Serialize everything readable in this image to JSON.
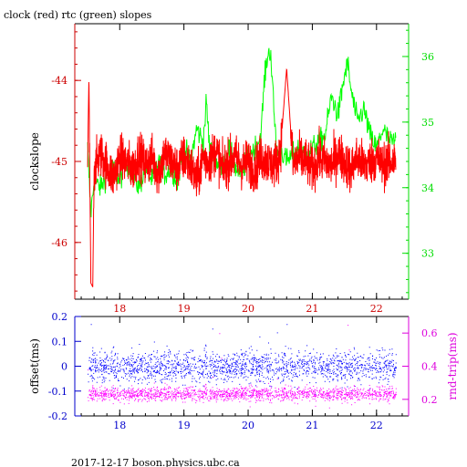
{
  "chart_data": [
    {
      "type": "line",
      "title": "clock (red) rtc (green) slopes",
      "ylabel": "clockslope",
      "xlim": [
        17.3,
        22.5
      ],
      "x_ticks": [
        18,
        19,
        20,
        21,
        22
      ],
      "left_axis": {
        "ylim": [
          -46.7,
          -43.3
        ],
        "ticks": [
          -46,
          -45,
          -44
        ],
        "color": "#cc0000"
      },
      "right_axis": {
        "ylim": [
          32.3,
          36.5
        ],
        "ticks": [
          33,
          34,
          35,
          36
        ],
        "color": "#00dd00"
      },
      "grid": false,
      "series": [
        {
          "name": "clock",
          "color": "#ff0000",
          "axis": "left",
          "x": [
            17.5,
            17.52,
            17.55,
            17.58,
            17.6,
            17.7,
            17.8,
            17.9,
            18.0,
            18.1,
            18.2,
            18.3,
            18.4,
            18.5,
            18.6,
            18.7,
            18.8,
            18.9,
            19.0,
            19.1,
            19.2,
            19.3,
            19.4,
            19.5,
            19.6,
            19.7,
            19.8,
            19.9,
            20.0,
            20.1,
            20.2,
            20.3,
            20.4,
            20.5,
            20.6,
            20.7,
            20.8,
            20.9,
            21.0,
            21.1,
            21.2,
            21.3,
            21.4,
            21.5,
            21.6,
            21.7,
            21.8,
            21.9,
            22.0,
            22.1,
            22.2,
            22.3
          ],
          "y": [
            -45.0,
            -43.95,
            -46.5,
            -46.55,
            -45.1,
            -44.9,
            -45.05,
            -45.2,
            -44.95,
            -45.0,
            -45.1,
            -44.9,
            -45.05,
            -44.95,
            -45.15,
            -44.9,
            -45.0,
            -45.1,
            -44.95,
            -45.05,
            -45.25,
            -44.95,
            -45.0,
            -44.85,
            -45.1,
            -45.0,
            -44.95,
            -45.05,
            -45.0,
            -45.1,
            -44.95,
            -45.0,
            -45.05,
            -44.9,
            -43.85,
            -45.05,
            -44.95,
            -45.0,
            -45.1,
            -44.95,
            -45.0,
            -45.05,
            -44.9,
            -45.0,
            -45.1,
            -44.95,
            -45.05,
            -45.0,
            -44.95,
            -45.05,
            -45.0,
            -45.0
          ]
        },
        {
          "name": "rtc",
          "color": "#00ff00",
          "axis": "right",
          "x": [
            17.5,
            17.55,
            17.6,
            17.7,
            17.8,
            17.9,
            18.0,
            18.1,
            18.2,
            18.3,
            18.4,
            18.5,
            18.6,
            18.7,
            18.8,
            18.9,
            19.0,
            19.1,
            19.2,
            19.3,
            19.35,
            19.4,
            19.5,
            19.6,
            19.7,
            19.8,
            19.9,
            20.0,
            20.1,
            20.2,
            20.25,
            20.3,
            20.35,
            20.4,
            20.45,
            20.5,
            20.6,
            20.7,
            20.8,
            20.9,
            21.0,
            21.1,
            21.2,
            21.3,
            21.4,
            21.5,
            21.55,
            21.6,
            21.7,
            21.8,
            21.9,
            22.0,
            22.1,
            22.2,
            22.3
          ],
          "y": [
            34.6,
            33.6,
            34.1,
            34.0,
            34.2,
            34.3,
            34.1,
            34.4,
            34.2,
            34.0,
            34.3,
            34.1,
            34.4,
            34.2,
            34.3,
            34.1,
            34.6,
            34.4,
            34.9,
            34.7,
            35.3,
            34.6,
            34.4,
            34.3,
            34.6,
            34.3,
            34.2,
            34.5,
            34.6,
            34.8,
            35.6,
            36.0,
            36.1,
            35.2,
            34.5,
            34.6,
            34.4,
            34.5,
            34.6,
            34.5,
            34.6,
            34.7,
            34.8,
            35.4,
            35.1,
            35.7,
            35.9,
            35.5,
            35.0,
            35.2,
            34.8,
            34.6,
            34.9,
            34.7,
            34.7
          ]
        }
      ]
    },
    {
      "type": "scatter",
      "xlim": [
        17.3,
        22.5
      ],
      "x_ticks": [
        18,
        19,
        20,
        21,
        22
      ],
      "left_axis": {
        "label": "offset(ms)",
        "ylim": [
          -0.2,
          0.2
        ],
        "ticks": [
          -0.2,
          -0.1,
          0,
          0.1,
          0.2
        ],
        "color": "#0000cc"
      },
      "right_axis": {
        "label": "rnd-trip(ms)",
        "ylim": [
          0.1,
          0.7
        ],
        "ticks": [
          0.2,
          0.4,
          0.6
        ],
        "color": "#dd00dd"
      },
      "series": [
        {
          "name": "offset",
          "color": "#0000ff",
          "axis": "left",
          "x_range": [
            17.5,
            22.3
          ],
          "center": 0.0,
          "spread": 0.03,
          "outliers": [
            [
              17.55,
              0.17
            ],
            [
              17.9,
              0.08
            ],
            [
              18.3,
              0.09
            ],
            [
              19.45,
              0.05
            ],
            [
              20.6,
              0.17
            ],
            [
              21.55,
              0.05
            ]
          ]
        },
        {
          "name": "rnd-trip",
          "color": "#ff00ff",
          "axis": "right",
          "x_range": [
            17.5,
            22.3
          ],
          "center": 0.235,
          "spread": 0.02,
          "outliers": [
            [
              17.5,
              0.38
            ],
            [
              18.7,
              0.3
            ],
            [
              19.55,
              0.6
            ],
            [
              19.58,
              0.45
            ],
            [
              21.55,
              0.65
            ],
            [
              21.57,
              0.5
            ]
          ]
        }
      ]
    }
  ],
  "footer": {
    "text": "2017-12-17 boson.physics.ubc.ca"
  }
}
